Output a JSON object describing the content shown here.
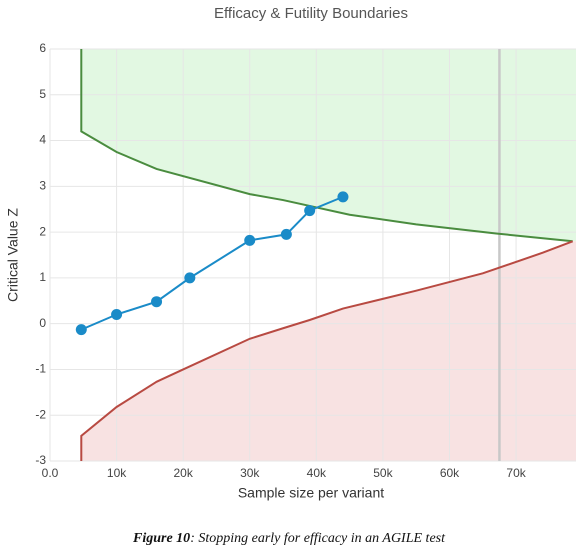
{
  "chart_data": {
    "type": "line",
    "title": "Efficacy & Futility Boundaries",
    "xlabel": "Sample size per variant",
    "ylabel": "Critical Value Z",
    "xlim": [
      0,
      79000
    ],
    "ylim": [
      -3,
      6
    ],
    "xticks": [
      {
        "value": 0,
        "label": "0.0"
      },
      {
        "value": 10000,
        "label": "10k"
      },
      {
        "value": 20000,
        "label": "20k"
      },
      {
        "value": 30000,
        "label": "30k"
      },
      {
        "value": 40000,
        "label": "40k"
      },
      {
        "value": 50000,
        "label": "50k"
      },
      {
        "value": 60000,
        "label": "60k"
      },
      {
        "value": 70000,
        "label": "70k"
      }
    ],
    "yticks": [
      -3,
      -2,
      -1,
      0,
      1,
      2,
      3,
      4,
      5,
      6
    ],
    "grid": true,
    "reference_x": 67500,
    "reference_color": "#c8c8c8",
    "series": [
      {
        "color": "#4a8c3f",
        "fill": "#e2f8e2",
        "fill_to": "top",
        "x": [
          4700,
          4700,
          10000,
          16000,
          30000,
          35000,
          45000,
          55000,
          67000,
          78500
        ],
        "values": [
          6,
          4.2,
          3.75,
          3.38,
          2.83,
          2.7,
          2.38,
          2.17,
          1.97,
          1.8
        ]
      },
      {
        "color": "#b84a42",
        "fill": "#f8e2e2",
        "fill_to": "bottom",
        "x": [
          4700,
          4700,
          10000,
          16000,
          20000,
          30000,
          35000,
          39000,
          44000,
          55000,
          65000,
          74000,
          78500
        ],
        "values": [
          -3,
          -2.45,
          -1.82,
          -1.27,
          -1.0,
          -0.33,
          -0.1,
          0.08,
          0.33,
          0.72,
          1.1,
          1.55,
          1.8
        ]
      },
      {
        "color": "#1a8bc8",
        "markers": true,
        "x": [
          4700,
          10000,
          16000,
          21000,
          30000,
          35500,
          39000,
          44000
        ],
        "values": [
          -0.13,
          0.2,
          0.48,
          1.0,
          1.82,
          1.95,
          2.47,
          2.77
        ]
      }
    ]
  },
  "caption": {
    "label": "Figure 10",
    "text": ": Stopping early for efficacy in an AGILE test"
  }
}
